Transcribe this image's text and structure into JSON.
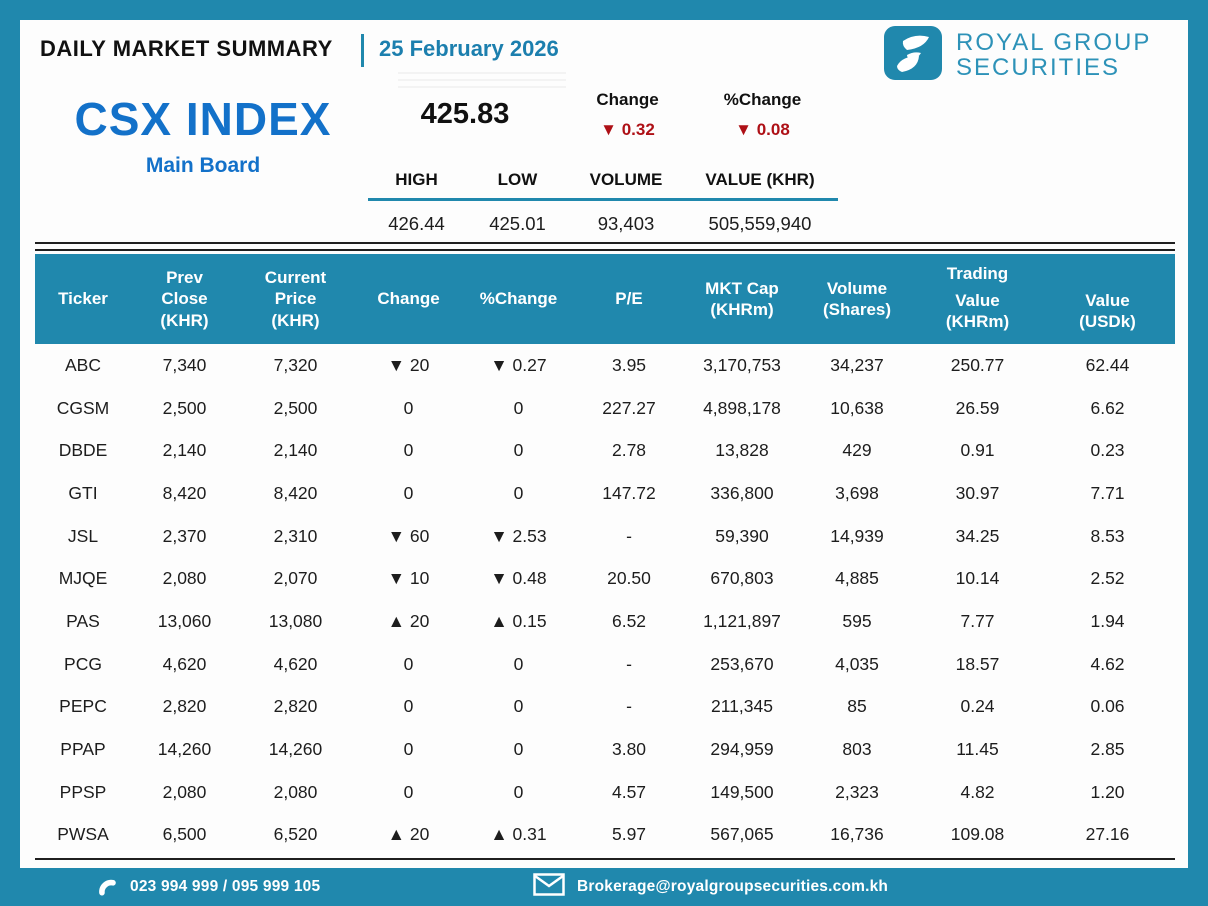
{
  "header": {
    "title": "DAILY MARKET SUMMARY",
    "date": "25 February 2026",
    "brand_line1": "ROYAL GROUP",
    "brand_line2": "SECURITIES"
  },
  "index": {
    "name": "CSX INDEX",
    "board": "Main Board",
    "value": "425.83",
    "change_label": "Change",
    "change": "0.32",
    "change_direction": "down",
    "pct_change_label": "%Change",
    "pct_change": "0.08",
    "pct_change_direction": "down",
    "stats": {
      "headers": [
        "HIGH",
        "LOW",
        "VOLUME",
        "VALUE (KHR)"
      ],
      "values": [
        "426.44",
        "425.01",
        "93,403",
        "505,559,940"
      ]
    }
  },
  "table": {
    "trading_group_label": "Trading",
    "columns": [
      {
        "key": "ticker",
        "label": "Ticker"
      },
      {
        "key": "prev_close",
        "label": "Prev\nClose\n(KHR)"
      },
      {
        "key": "current_price",
        "label": "Current\nPrice\n(KHR)"
      },
      {
        "key": "change",
        "label": "Change"
      },
      {
        "key": "pct_change",
        "label": "%Change"
      },
      {
        "key": "pe",
        "label": "P/E"
      },
      {
        "key": "mkt_cap",
        "label": "MKT Cap\n(KHRm)"
      },
      {
        "key": "volume",
        "label": "Volume\n(Shares)"
      },
      {
        "key": "value_khrm",
        "label": "Value\n(KHRm)"
      },
      {
        "key": "value_usdk",
        "label": "Value\n(USDk)"
      }
    ],
    "rows": [
      {
        "ticker": "ABC",
        "prev_close": "7,340",
        "current_price": "7,320",
        "change": "20",
        "change_dir": "down",
        "pct_change": "0.27",
        "pct_change_dir": "down",
        "pe": "3.95",
        "mkt_cap": "3,170,753",
        "volume": "34,237",
        "value_khrm": "250.77",
        "value_usdk": "62.44"
      },
      {
        "ticker": "CGSM",
        "prev_close": "2,500",
        "current_price": "2,500",
        "change": "0",
        "change_dir": "flat",
        "pct_change": "0",
        "pct_change_dir": "flat",
        "pe": "227.27",
        "mkt_cap": "4,898,178",
        "volume": "10,638",
        "value_khrm": "26.59",
        "value_usdk": "6.62"
      },
      {
        "ticker": "DBDE",
        "prev_close": "2,140",
        "current_price": "2,140",
        "change": "0",
        "change_dir": "flat",
        "pct_change": "0",
        "pct_change_dir": "flat",
        "pe": "2.78",
        "mkt_cap": "13,828",
        "volume": "429",
        "value_khrm": "0.91",
        "value_usdk": "0.23"
      },
      {
        "ticker": "GTI",
        "prev_close": "8,420",
        "current_price": "8,420",
        "change": "0",
        "change_dir": "flat",
        "pct_change": "0",
        "pct_change_dir": "flat",
        "pe": "147.72",
        "mkt_cap": "336,800",
        "volume": "3,698",
        "value_khrm": "30.97",
        "value_usdk": "7.71"
      },
      {
        "ticker": "JSL",
        "prev_close": "2,370",
        "current_price": "2,310",
        "change": "60",
        "change_dir": "down",
        "pct_change": "2.53",
        "pct_change_dir": "down",
        "pe": "-",
        "mkt_cap": "59,390",
        "volume": "14,939",
        "value_khrm": "34.25",
        "value_usdk": "8.53"
      },
      {
        "ticker": "MJQE",
        "prev_close": "2,080",
        "current_price": "2,070",
        "change": "10",
        "change_dir": "down",
        "pct_change": "0.48",
        "pct_change_dir": "down",
        "pe": "20.50",
        "mkt_cap": "670,803",
        "volume": "4,885",
        "value_khrm": "10.14",
        "value_usdk": "2.52"
      },
      {
        "ticker": "PAS",
        "prev_close": "13,060",
        "current_price": "13,080",
        "change": "20",
        "change_dir": "up",
        "pct_change": "0.15",
        "pct_change_dir": "up",
        "pe": "6.52",
        "mkt_cap": "1,121,897",
        "volume": "595",
        "value_khrm": "7.77",
        "value_usdk": "1.94"
      },
      {
        "ticker": "PCG",
        "prev_close": "4,620",
        "current_price": "4,620",
        "change": "0",
        "change_dir": "flat",
        "pct_change": "0",
        "pct_change_dir": "flat",
        "pe": "-",
        "mkt_cap": "253,670",
        "volume": "4,035",
        "value_khrm": "18.57",
        "value_usdk": "4.62"
      },
      {
        "ticker": "PEPC",
        "prev_close": "2,820",
        "current_price": "2,820",
        "change": "0",
        "change_dir": "flat",
        "pct_change": "0",
        "pct_change_dir": "flat",
        "pe": "-",
        "mkt_cap": "211,345",
        "volume": "85",
        "value_khrm": "0.24",
        "value_usdk": "0.06"
      },
      {
        "ticker": "PPAP",
        "prev_close": "14,260",
        "current_price": "14,260",
        "change": "0",
        "change_dir": "flat",
        "pct_change": "0",
        "pct_change_dir": "flat",
        "pe": "3.80",
        "mkt_cap": "294,959",
        "volume": "803",
        "value_khrm": "11.45",
        "value_usdk": "2.85"
      },
      {
        "ticker": "PPSP",
        "prev_close": "2,080",
        "current_price": "2,080",
        "change": "0",
        "change_dir": "flat",
        "pct_change": "0",
        "pct_change_dir": "flat",
        "pe": "4.57",
        "mkt_cap": "149,500",
        "volume": "2,323",
        "value_khrm": "4.82",
        "value_usdk": "1.20"
      },
      {
        "ticker": "PWSA",
        "prev_close": "6,500",
        "current_price": "6,520",
        "change": "20",
        "change_dir": "up",
        "pct_change": "0.31",
        "pct_change_dir": "up",
        "pe": "5.97",
        "mkt_cap": "567,065",
        "volume": "16,736",
        "value_khrm": "109.08",
        "value_usdk": "27.16"
      }
    ]
  },
  "footer": {
    "phone": "023 994 999 / 095 999 105",
    "email": "Brokerage@royalgroupsecurities.com.kh"
  },
  "icons": {
    "down_glyph": "▼",
    "up_glyph": "▲"
  },
  "colors": {
    "teal": "#2088ad",
    "index_blue": "#1371c9",
    "down_red": "#ae1016",
    "up_green": "#47682c"
  }
}
